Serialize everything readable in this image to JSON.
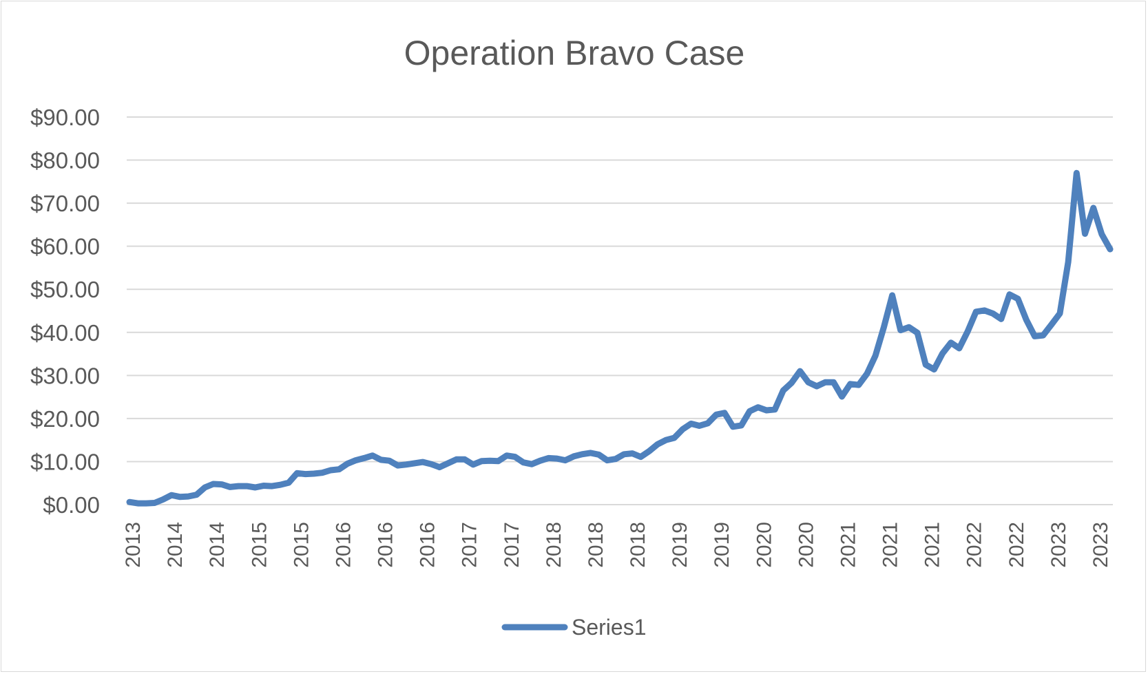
{
  "chart_data": {
    "type": "line",
    "title": "Operation Bravo Case",
    "xlabel": "",
    "ylabel": "",
    "ylim": [
      0,
      90
    ],
    "yticks": [
      "$0.00",
      "$10.00",
      "$20.00",
      "$30.00",
      "$40.00",
      "$50.00",
      "$60.00",
      "$70.00",
      "$80.00",
      "$90.00"
    ],
    "xtick_labels": [
      "2013",
      "2014",
      "2014",
      "2015",
      "2015",
      "2016",
      "2016",
      "2016",
      "2017",
      "2017",
      "2018",
      "2018",
      "2018",
      "2019",
      "2019",
      "2020",
      "2020",
      "2021",
      "2021",
      "2021",
      "2022",
      "2022",
      "2023",
      "2023"
    ],
    "grid": true,
    "legend_position": "bottom",
    "series": [
      {
        "name": "Series1",
        "color": "#4f81bd",
        "values": [
          0.6,
          0.3,
          0.3,
          0.4,
          1.2,
          2.2,
          1.8,
          1.9,
          2.3,
          4.0,
          4.8,
          4.7,
          4.1,
          4.3,
          4.3,
          4.0,
          4.4,
          4.3,
          4.6,
          5.1,
          7.3,
          7.1,
          7.2,
          7.4,
          8.0,
          8.2,
          9.5,
          10.3,
          10.8,
          11.4,
          10.4,
          10.2,
          9.1,
          9.3,
          9.6,
          9.9,
          9.4,
          8.7,
          9.6,
          10.5,
          10.5,
          9.3,
          10.1,
          10.2,
          10.1,
          11.4,
          11.1,
          9.8,
          9.4,
          10.2,
          10.8,
          10.7,
          10.3,
          11.2,
          11.7,
          12.0,
          11.6,
          10.3,
          10.6,
          11.7,
          11.9,
          11.1,
          12.4,
          14.0,
          15.0,
          15.5,
          17.5,
          18.8,
          18.3,
          18.9,
          20.9,
          21.3,
          18.1,
          18.4,
          21.7,
          22.6,
          21.9,
          22.1,
          26.5,
          28.3,
          31.0,
          28.4,
          27.5,
          28.4,
          28.4,
          25.1,
          28.0,
          27.8,
          30.4,
          34.6,
          41.2,
          48.6,
          40.5,
          41.2,
          39.9,
          32.5,
          31.4,
          35.1,
          37.6,
          36.3,
          40.2,
          44.8,
          45.1,
          44.4,
          43.1,
          48.8,
          47.8,
          42.9,
          39.1,
          39.3,
          41.8,
          44.4,
          56.3,
          77.0,
          62.9,
          68.9,
          62.8,
          59.3
        ]
      }
    ]
  }
}
